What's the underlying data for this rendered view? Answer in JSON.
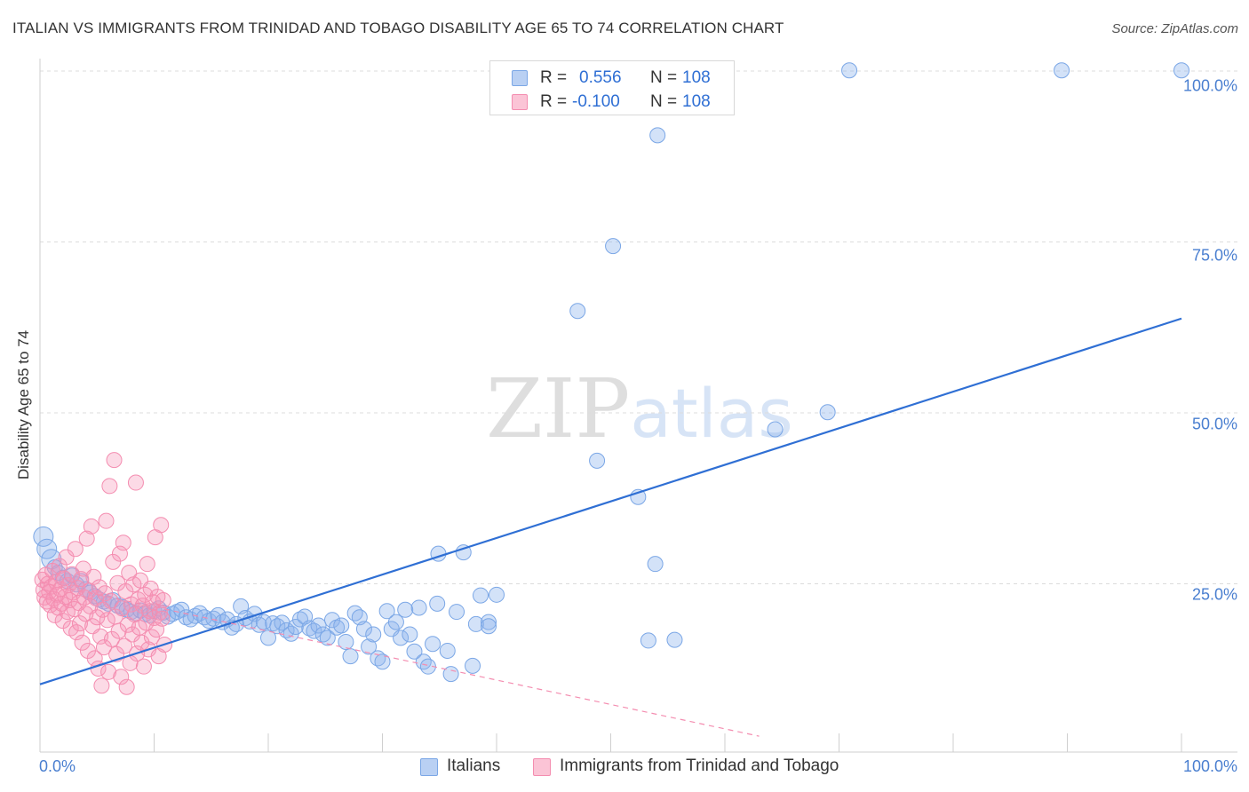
{
  "chart_data": {
    "type": "scatter",
    "title": "ITALIAN VS IMMIGRANTS FROM TRINIDAD AND TOBAGO DISABILITY AGE 65 TO 74 CORRELATION CHART",
    "source": "Source: ZipAtlas.com",
    "watermark": "ZIPatlas",
    "ylabel": "Disability Age 65 to 74",
    "xlim": [
      0,
      100
    ],
    "ylim": [
      0,
      104
    ],
    "y_ticks": [
      {
        "value": 25,
        "label": "25.0%"
      },
      {
        "value": 50,
        "label": "50.0%"
      },
      {
        "value": 75,
        "label": "75.0%"
      },
      {
        "value": 100,
        "label": "100.0%"
      }
    ],
    "x_tick_labels": {
      "min": "0.0%",
      "max": "100.0%"
    },
    "x_minor_ticks": [
      0,
      10,
      20,
      30,
      40,
      50,
      60,
      70,
      80,
      90,
      100
    ],
    "grid": true,
    "legend_position": "top-center",
    "legend": {
      "rows": [
        {
          "r_label": "R = ",
          "r_value": "0.556",
          "n_label": "N = ",
          "n_value": "108"
        },
        {
          "r_label": "R = ",
          "r_value": "-0.100",
          "n_label": "N = ",
          "n_value": "108"
        }
      ]
    },
    "series": [
      {
        "name": "Italians",
        "color": "#7ba7e6",
        "trend_color": "#2f6fd4",
        "trend": {
          "x": [
            0,
            100
          ],
          "y": [
            10.3,
            63.8
          ],
          "style": "solid"
        },
        "points": [
          [
            0.3,
            31.9
          ],
          [
            0.6,
            30.1
          ],
          [
            1.0,
            28.6
          ],
          [
            1.3,
            27.4
          ],
          [
            1.6,
            26.6
          ],
          [
            2.0,
            25.9
          ],
          [
            2.4,
            25.4
          ],
          [
            2.8,
            26.2
          ],
          [
            3.2,
            24.9
          ],
          [
            3.6,
            25.4
          ],
          [
            4.0,
            24.2
          ],
          [
            4.4,
            23.7
          ],
          [
            4.8,
            23.2
          ],
          [
            5.2,
            22.7
          ],
          [
            5.6,
            22.4
          ],
          [
            6.0,
            22.1
          ],
          [
            6.4,
            22.6
          ],
          [
            6.8,
            21.8
          ],
          [
            7.2,
            21.6
          ],
          [
            7.6,
            21.2
          ],
          [
            8.0,
            20.9
          ],
          [
            8.4,
            20.7
          ],
          [
            8.8,
            21.1
          ],
          [
            9.2,
            20.6
          ],
          [
            9.6,
            20.4
          ],
          [
            10.0,
            21.0
          ],
          [
            10.4,
            21.4
          ],
          [
            10.8,
            20.8
          ],
          [
            11.2,
            20.2
          ],
          [
            11.6,
            20.6
          ],
          [
            12.0,
            20.9
          ],
          [
            12.4,
            21.2
          ],
          [
            12.8,
            20.1
          ],
          [
            13.2,
            19.8
          ],
          [
            13.6,
            20.3
          ],
          [
            14.0,
            20.7
          ],
          [
            14.4,
            20.1
          ],
          [
            14.8,
            19.6
          ],
          [
            15.2,
            19.9
          ],
          [
            15.6,
            20.4
          ],
          [
            16.0,
            19.4
          ],
          [
            16.4,
            19.8
          ],
          [
            16.8,
            18.6
          ],
          [
            17.2,
            19.1
          ],
          [
            17.6,
            21.7
          ],
          [
            18.0,
            20.0
          ],
          [
            18.4,
            19.5
          ],
          [
            18.8,
            20.6
          ],
          [
            19.2,
            19.0
          ],
          [
            19.6,
            19.4
          ],
          [
            20.0,
            17.1
          ],
          [
            20.4,
            19.2
          ],
          [
            20.8,
            18.8
          ],
          [
            21.2,
            19.3
          ],
          [
            21.6,
            18.2
          ],
          [
            22.0,
            17.7
          ],
          [
            22.4,
            18.7
          ],
          [
            22.8,
            19.8
          ],
          [
            23.2,
            20.2
          ],
          [
            23.6,
            18.5
          ],
          [
            24.0,
            18.1
          ],
          [
            24.4,
            18.9
          ],
          [
            24.8,
            17.6
          ],
          [
            25.2,
            17.1
          ],
          [
            25.6,
            19.7
          ],
          [
            26.0,
            18.6
          ],
          [
            26.4,
            18.9
          ],
          [
            26.8,
            16.5
          ],
          [
            27.2,
            14.4
          ],
          [
            27.6,
            20.7
          ],
          [
            28.0,
            20.1
          ],
          [
            28.4,
            18.4
          ],
          [
            28.8,
            15.8
          ],
          [
            29.2,
            17.6
          ],
          [
            29.6,
            14.1
          ],
          [
            30.0,
            13.6
          ],
          [
            30.4,
            21.0
          ],
          [
            30.8,
            18.4
          ],
          [
            31.2,
            19.4
          ],
          [
            31.6,
            17.1
          ],
          [
            32.0,
            21.2
          ],
          [
            32.4,
            17.6
          ],
          [
            32.8,
            15.1
          ],
          [
            33.2,
            21.5
          ],
          [
            33.6,
            13.6
          ],
          [
            34.0,
            12.9
          ],
          [
            34.4,
            16.2
          ],
          [
            34.8,
            22.1
          ],
          [
            34.9,
            29.4
          ],
          [
            35.7,
            15.2
          ],
          [
            36.0,
            11.8
          ],
          [
            37.1,
            29.6
          ],
          [
            36.5,
            20.9
          ],
          [
            37.9,
            13.0
          ],
          [
            38.2,
            19.1
          ],
          [
            38.6,
            23.3
          ],
          [
            39.3,
            19.4
          ],
          [
            39.3,
            18.8
          ],
          [
            40.0,
            23.4
          ],
          [
            47.1,
            64.9
          ],
          [
            48.8,
            43.0
          ],
          [
            50.2,
            74.4
          ],
          [
            52.4,
            37.7
          ],
          [
            53.3,
            16.7
          ],
          [
            53.9,
            27.9
          ],
          [
            54.1,
            90.6
          ],
          [
            55.6,
            16.8
          ],
          [
            64.4,
            47.6
          ],
          [
            69.0,
            50.1
          ],
          [
            70.9,
            100.1
          ],
          [
            89.5,
            100.1
          ],
          [
            100.0,
            100.1
          ]
        ]
      },
      {
        "name": "Immigrants from Trinidad and Tobago",
        "color": "#f48db0",
        "trend_color": "#f48db0",
        "trend": {
          "x": [
            0,
            100
          ],
          "y": [
            25.2,
            -10.5
          ],
          "style": "dashed"
        },
        "points": [
          [
            0.2,
            25.6
          ],
          [
            0.3,
            24.1
          ],
          [
            0.4,
            23.0
          ],
          [
            0.5,
            26.3
          ],
          [
            0.6,
            22.4
          ],
          [
            0.7,
            25.0
          ],
          [
            0.8,
            23.8
          ],
          [
            0.9,
            21.9
          ],
          [
            1.0,
            24.6
          ],
          [
            1.1,
            26.9
          ],
          [
            1.2,
            22.8
          ],
          [
            1.3,
            20.4
          ],
          [
            1.4,
            25.3
          ],
          [
            1.5,
            23.4
          ],
          [
            1.6,
            21.5
          ],
          [
            1.7,
            27.6
          ],
          [
            1.8,
            24.2
          ],
          [
            1.9,
            22.1
          ],
          [
            2.0,
            19.6
          ],
          [
            2.1,
            25.8
          ],
          [
            2.2,
            23.1
          ],
          [
            2.3,
            28.9
          ],
          [
            2.4,
            20.9
          ],
          [
            2.5,
            24.8
          ],
          [
            2.6,
            22.6
          ],
          [
            2.7,
            18.5
          ],
          [
            2.8,
            26.4
          ],
          [
            2.9,
            23.7
          ],
          [
            3.0,
            21.3
          ],
          [
            3.1,
            30.1
          ],
          [
            3.2,
            17.9
          ],
          [
            3.3,
            24.4
          ],
          [
            3.4,
            22.2
          ],
          [
            3.5,
            19.2
          ],
          [
            3.6,
            25.7
          ],
          [
            3.7,
            16.4
          ],
          [
            3.8,
            27.2
          ],
          [
            3.9,
            23.0
          ],
          [
            4.0,
            20.6
          ],
          [
            4.1,
            31.6
          ],
          [
            4.2,
            15.2
          ],
          [
            4.3,
            24.0
          ],
          [
            4.4,
            21.7
          ],
          [
            4.5,
            33.4
          ],
          [
            4.6,
            18.8
          ],
          [
            4.7,
            26.0
          ],
          [
            4.8,
            14.1
          ],
          [
            4.9,
            22.9
          ],
          [
            5.0,
            20.1
          ],
          [
            5.1,
            12.6
          ],
          [
            5.2,
            24.5
          ],
          [
            5.3,
            17.3
          ],
          [
            5.4,
            10.1
          ],
          [
            5.5,
            21.2
          ],
          [
            5.6,
            15.7
          ],
          [
            5.7,
            23.6
          ],
          [
            5.8,
            34.2
          ],
          [
            5.9,
            19.7
          ],
          [
            6.0,
            12.1
          ],
          [
            6.1,
            39.3
          ],
          [
            6.2,
            22.5
          ],
          [
            6.3,
            16.9
          ],
          [
            6.4,
            28.2
          ],
          [
            6.5,
            43.1
          ],
          [
            6.6,
            20.2
          ],
          [
            6.7,
            14.7
          ],
          [
            6.8,
            25.1
          ],
          [
            6.9,
            18.1
          ],
          [
            7.0,
            29.4
          ],
          [
            7.1,
            11.4
          ],
          [
            7.2,
            21.4
          ],
          [
            7.3,
            31.0
          ],
          [
            7.4,
            15.9
          ],
          [
            7.5,
            23.9
          ],
          [
            7.6,
            9.9
          ],
          [
            7.7,
            19.0
          ],
          [
            7.8,
            26.6
          ],
          [
            7.9,
            13.4
          ],
          [
            8.0,
            22.0
          ],
          [
            8.1,
            17.6
          ],
          [
            8.2,
            24.9
          ],
          [
            8.3,
            20.5
          ],
          [
            8.4,
            39.8
          ],
          [
            8.5,
            14.8
          ],
          [
            8.6,
            22.7
          ],
          [
            8.7,
            18.6
          ],
          [
            8.8,
            25.5
          ],
          [
            8.9,
            16.4
          ],
          [
            9.0,
            21.8
          ],
          [
            9.1,
            12.9
          ],
          [
            9.2,
            23.4
          ],
          [
            9.3,
            19.3
          ],
          [
            9.4,
            27.9
          ],
          [
            9.5,
            15.4
          ],
          [
            9.6,
            21.0
          ],
          [
            9.7,
            24.3
          ],
          [
            9.8,
            17.2
          ],
          [
            9.9,
            22.3
          ],
          [
            10.0,
            20.0
          ],
          [
            10.1,
            31.8
          ],
          [
            10.2,
            18.3
          ],
          [
            10.3,
            23.1
          ],
          [
            10.4,
            14.4
          ],
          [
            10.5,
            20.8
          ],
          [
            10.6,
            33.6
          ],
          [
            10.7,
            19.9
          ],
          [
            10.8,
            22.6
          ],
          [
            10.9,
            16.1
          ]
        ]
      }
    ]
  }
}
